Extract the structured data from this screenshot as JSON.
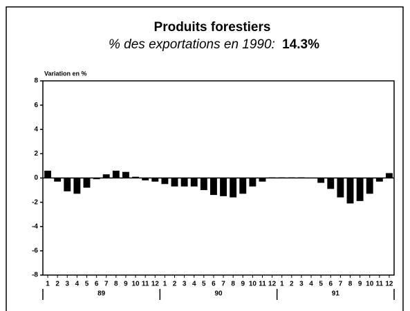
{
  "chart_data": {
    "type": "bar",
    "title": "Produits forestiers",
    "subtitle": "% des exportations en 1990:",
    "subtitle_value": "14.3%",
    "y_label": "Variation en %",
    "categories": [
      "1",
      "2",
      "3",
      "4",
      "5",
      "6",
      "7",
      "8",
      "9",
      "10",
      "11",
      "12",
      "1",
      "2",
      "3",
      "4",
      "5",
      "6",
      "7",
      "8",
      "9",
      "10",
      "11",
      "12",
      "1",
      "2",
      "3",
      "4",
      "5",
      "6",
      "7",
      "8",
      "9",
      "10",
      "11",
      "12"
    ],
    "years": [
      "89",
      "90",
      "91"
    ],
    "values": [
      0.6,
      -0.3,
      -1.1,
      -1.3,
      -0.8,
      -0.1,
      0.3,
      0.6,
      0.5,
      0.1,
      -0.2,
      -0.3,
      -0.5,
      -0.7,
      -0.7,
      -0.7,
      -1.0,
      -1.4,
      -1.5,
      -1.6,
      -1.3,
      -0.7,
      -0.3,
      0.05,
      0.05,
      0.05,
      0.05,
      0.0,
      -0.4,
      -0.9,
      -1.6,
      -2.1,
      -1.9,
      -1.3,
      -0.3,
      0.4
    ],
    "color": "#000000",
    "ylim": [
      -8,
      8
    ],
    "yticks": [
      -8,
      -6,
      -4,
      -2,
      0,
      2,
      4,
      6,
      8
    ]
  }
}
